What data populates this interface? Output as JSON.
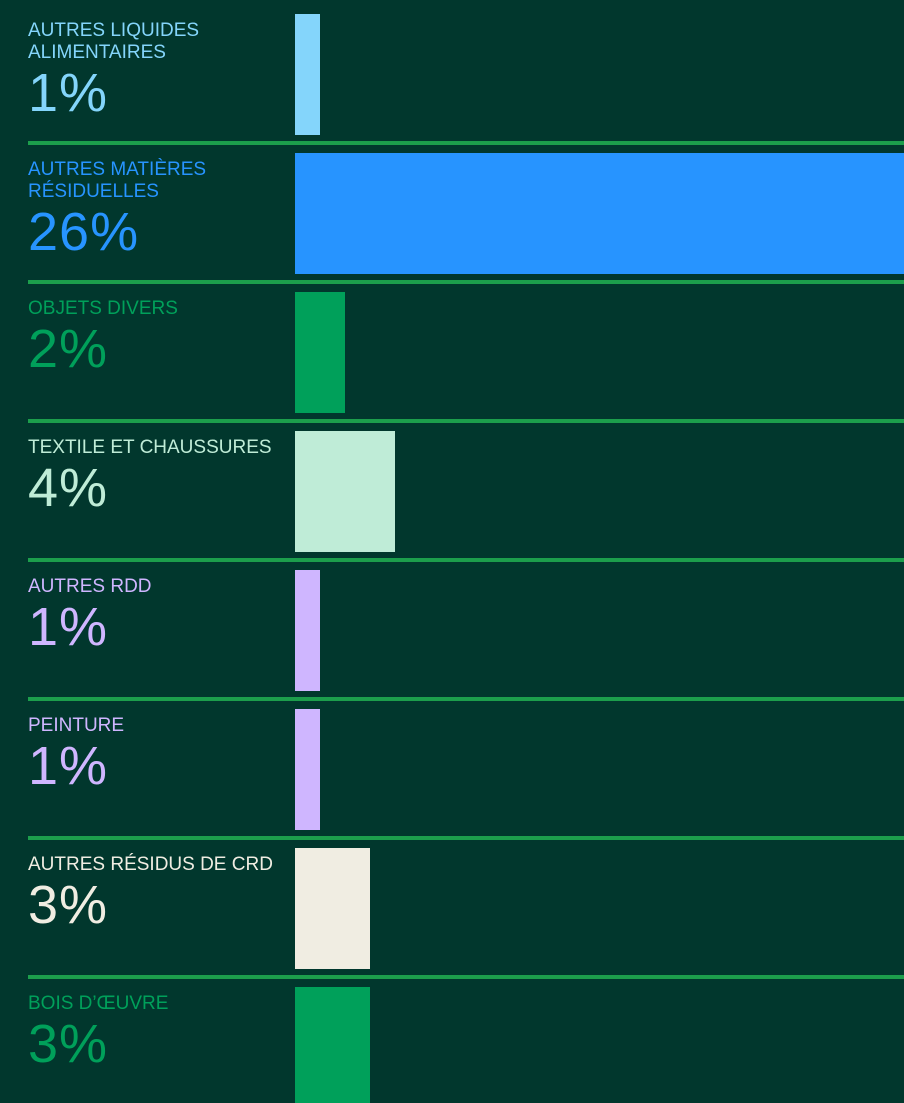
{
  "chart_data": {
    "type": "bar",
    "orientation": "horizontal",
    "categories": [
      "AUTRES LIQUIDES ALIMENTAIRES",
      "AUTRES MATIÈRES RÉSIDUELLES",
      "OBJETS DIVERS",
      "TEXTILE ET CHAUSSURES",
      "AUTRES RDD",
      "PEINTURE",
      "AUTRES RÉSIDUS DE CRD",
      "BOIS D’ŒUVRE"
    ],
    "values": [
      1,
      26,
      2,
      4,
      1,
      1,
      3,
      3
    ],
    "value_labels": [
      "1%",
      "26%",
      "2%",
      "4%",
      "1%",
      "1%",
      "3%",
      "3%"
    ],
    "colors": [
      "#84d5fb",
      "#2794ff",
      "#00a05a",
      "#bfecd7",
      "#cfb6ff",
      "#cfb6ff",
      "#f0ede2",
      "#00a05a"
    ]
  }
}
